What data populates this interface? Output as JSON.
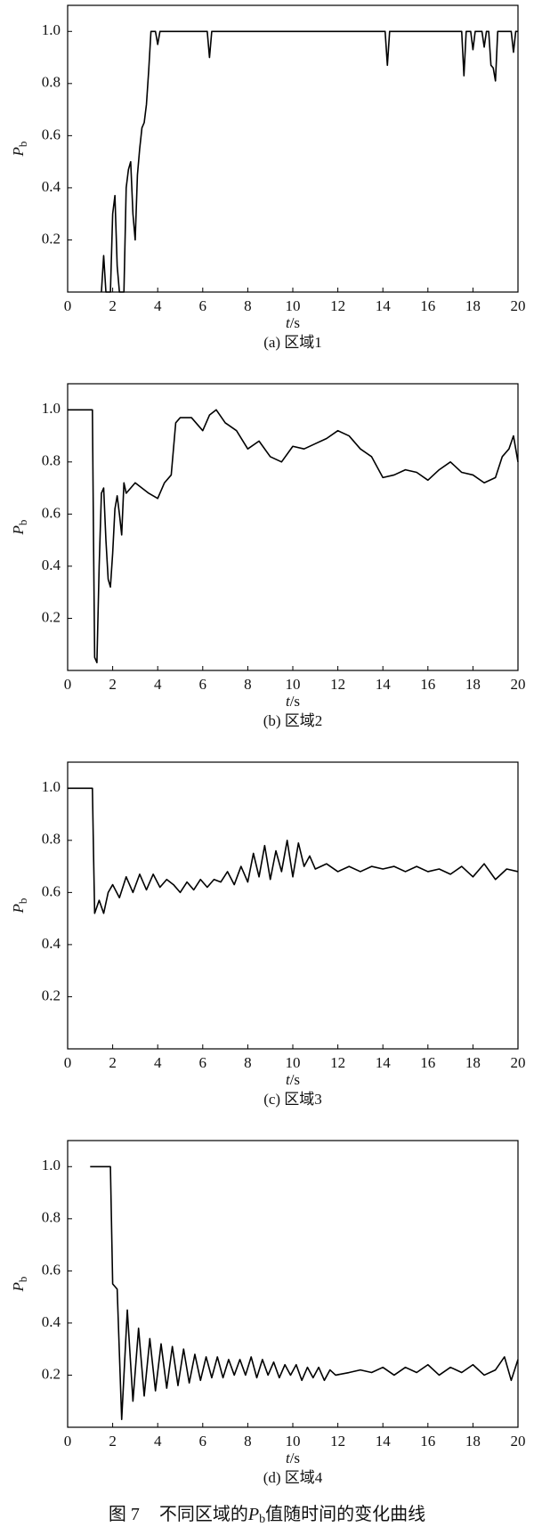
{
  "chart_data": [
    {
      "type": "line",
      "subtitle": "(a) 区域1",
      "x_label": [
        "t",
        "/s"
      ],
      "y_label": [
        "P",
        "b"
      ],
      "color": "#000000",
      "xlim": [
        0,
        20
      ],
      "xticks": [
        0,
        2,
        4,
        6,
        8,
        10,
        12,
        14,
        16,
        18,
        20
      ],
      "ylim": [
        0,
        1.1
      ],
      "yticks": [
        0.2,
        0.4,
        0.6,
        0.8,
        {
          "value": 1,
          "label": "1.0"
        }
      ],
      "x": [
        1.5,
        1.6,
        1.7,
        1.9,
        2.0,
        2.1,
        2.2,
        2.3,
        2.4,
        2.5,
        2.6,
        2.7,
        2.8,
        2.9,
        3.0,
        3.1,
        3.2,
        3.3,
        3.4,
        3.5,
        3.6,
        3.7,
        3.9,
        4.0,
        4.1,
        6.2,
        6.3,
        6.4,
        14.1,
        14.2,
        14.3,
        17.5,
        17.6,
        17.7,
        17.9,
        18.0,
        18.1,
        18.4,
        18.5,
        18.6,
        18.7,
        18.8,
        18.9,
        19.0,
        19.1,
        19.7,
        19.8,
        19.9,
        20
      ],
      "values": [
        0,
        0.14,
        0,
        0,
        0.3,
        0.37,
        0.1,
        0,
        0,
        0,
        0.4,
        0.47,
        0.5,
        0.3,
        0.2,
        0.45,
        0.55,
        0.63,
        0.65,
        0.72,
        0.85,
        1.0,
        1.0,
        0.95,
        1.0,
        1.0,
        0.9,
        1.0,
        1.0,
        0.87,
        1.0,
        1.0,
        0.83,
        1.0,
        1.0,
        0.93,
        1.0,
        1.0,
        0.94,
        1.0,
        1.0,
        0.87,
        0.86,
        0.81,
        1.0,
        1.0,
        0.92,
        1.0,
        1.0
      ]
    },
    {
      "type": "line",
      "subtitle": "(b) 区域2",
      "x_label": [
        "t",
        "/s"
      ],
      "y_label": [
        "P",
        "b"
      ],
      "color": "#000000",
      "xlim": [
        0,
        20
      ],
      "xticks": [
        0,
        2,
        4,
        6,
        8,
        10,
        12,
        14,
        16,
        18,
        20
      ],
      "ylim": [
        0,
        1.1
      ],
      "yticks": [
        0.2,
        0.4,
        0.6,
        0.8,
        {
          "value": 1,
          "label": "1.0"
        }
      ],
      "x": [
        0,
        1.1,
        1.15,
        1.2,
        1.3,
        1.4,
        1.5,
        1.6,
        1.7,
        1.8,
        1.9,
        2.0,
        2.1,
        2.2,
        2.3,
        2.4,
        2.5,
        2.6,
        2.8,
        3.0,
        3.3,
        3.6,
        4.0,
        4.3,
        4.6,
        4.8,
        5.0,
        5.5,
        6.0,
        6.3,
        6.6,
        7.0,
        7.5,
        8.0,
        8.5,
        9.0,
        9.5,
        10.0,
        10.5,
        11.0,
        11.5,
        12.0,
        12.5,
        13.0,
        13.5,
        14.0,
        14.5,
        15.0,
        15.5,
        16.0,
        16.5,
        17.0,
        17.5,
        18.0,
        18.5,
        19.0,
        19.3,
        19.6,
        19.8,
        20
      ],
      "values": [
        1,
        1,
        0.5,
        0.05,
        0.03,
        0.4,
        0.68,
        0.7,
        0.5,
        0.35,
        0.32,
        0.45,
        0.62,
        0.67,
        0.6,
        0.52,
        0.72,
        0.68,
        0.7,
        0.72,
        0.7,
        0.68,
        0.66,
        0.72,
        0.75,
        0.95,
        0.97,
        0.97,
        0.92,
        0.98,
        1.0,
        0.95,
        0.92,
        0.85,
        0.88,
        0.82,
        0.8,
        0.86,
        0.85,
        0.87,
        0.89,
        0.92,
        0.9,
        0.85,
        0.82,
        0.74,
        0.75,
        0.77,
        0.76,
        0.73,
        0.77,
        0.8,
        0.76,
        0.75,
        0.72,
        0.74,
        0.82,
        0.85,
        0.9,
        0.8
      ]
    },
    {
      "type": "line",
      "subtitle": "(c) 区域3",
      "x_label": [
        "t",
        "/s"
      ],
      "y_label": [
        "P",
        "b"
      ],
      "color": "#000000",
      "xlim": [
        0,
        20
      ],
      "xticks": [
        0,
        2,
        4,
        6,
        8,
        10,
        12,
        14,
        16,
        18,
        20
      ],
      "ylim": [
        0,
        1.1
      ],
      "yticks": [
        0.2,
        0.4,
        0.6,
        0.8,
        {
          "value": 1,
          "label": "1.0"
        }
      ],
      "x": [
        0,
        1.1,
        1.15,
        1.2,
        1.4,
        1.6,
        1.8,
        2.0,
        2.3,
        2.6,
        2.9,
        3.2,
        3.5,
        3.8,
        4.1,
        4.4,
        4.7,
        5.0,
        5.3,
        5.6,
        5.9,
        6.2,
        6.5,
        6.8,
        7.1,
        7.4,
        7.7,
        8.0,
        8.25,
        8.5,
        8.75,
        9.0,
        9.25,
        9.5,
        9.75,
        10.0,
        10.25,
        10.5,
        10.75,
        11.0,
        11.5,
        12.0,
        12.5,
        13.0,
        13.5,
        14.0,
        14.5,
        15.0,
        15.5,
        16.0,
        16.5,
        17.0,
        17.5,
        18.0,
        18.5,
        19.0,
        19.5,
        20
      ],
      "values": [
        1,
        1,
        0.75,
        0.52,
        0.57,
        0.52,
        0.6,
        0.63,
        0.58,
        0.66,
        0.6,
        0.67,
        0.61,
        0.67,
        0.62,
        0.65,
        0.63,
        0.6,
        0.64,
        0.61,
        0.65,
        0.62,
        0.65,
        0.64,
        0.68,
        0.63,
        0.7,
        0.64,
        0.75,
        0.66,
        0.78,
        0.65,
        0.76,
        0.68,
        0.8,
        0.66,
        0.79,
        0.7,
        0.74,
        0.69,
        0.71,
        0.68,
        0.7,
        0.68,
        0.7,
        0.69,
        0.7,
        0.68,
        0.7,
        0.68,
        0.69,
        0.67,
        0.7,
        0.66,
        0.71,
        0.65,
        0.69,
        0.68
      ]
    },
    {
      "type": "line",
      "subtitle": "(d) 区域4",
      "x_label": [
        "t",
        "/s"
      ],
      "y_label": [
        "P",
        "b"
      ],
      "color": "#000000",
      "xlim": [
        0,
        20
      ],
      "xticks": [
        0,
        2,
        4,
        6,
        8,
        10,
        12,
        14,
        16,
        18,
        20
      ],
      "ylim": [
        0,
        1.1
      ],
      "yticks": [
        0.2,
        0.4,
        0.6,
        0.8,
        {
          "value": 1,
          "label": "1.0"
        }
      ],
      "x": [
        1,
        1.9,
        2.0,
        2.2,
        2.4,
        2.65,
        2.9,
        3.15,
        3.4,
        3.65,
        3.9,
        4.15,
        4.4,
        4.65,
        4.9,
        5.15,
        5.4,
        5.65,
        5.9,
        6.15,
        6.4,
        6.65,
        6.9,
        7.15,
        7.4,
        7.65,
        7.9,
        8.15,
        8.4,
        8.65,
        8.9,
        9.15,
        9.4,
        9.65,
        9.9,
        10.15,
        10.4,
        10.65,
        10.9,
        11.15,
        11.4,
        11.65,
        11.9,
        12.5,
        13,
        13.5,
        14,
        14.5,
        15,
        15.5,
        16,
        16.5,
        17,
        17.5,
        18,
        18.5,
        19,
        19.4,
        19.7,
        20
      ],
      "values": [
        1,
        1,
        0.55,
        0.53,
        0.03,
        0.45,
        0.1,
        0.38,
        0.12,
        0.34,
        0.14,
        0.32,
        0.15,
        0.31,
        0.16,
        0.3,
        0.17,
        0.28,
        0.18,
        0.27,
        0.19,
        0.27,
        0.19,
        0.26,
        0.2,
        0.26,
        0.2,
        0.27,
        0.19,
        0.26,
        0.2,
        0.25,
        0.19,
        0.24,
        0.2,
        0.24,
        0.18,
        0.23,
        0.19,
        0.23,
        0.18,
        0.22,
        0.2,
        0.21,
        0.22,
        0.21,
        0.23,
        0.2,
        0.23,
        0.21,
        0.24,
        0.2,
        0.23,
        0.21,
        0.24,
        0.2,
        0.22,
        0.27,
        0.18,
        0.26
      ]
    }
  ],
  "caption": [
    "图 7",
    "不同区域的",
    "P",
    "b",
    "值随时间的变化曲线"
  ]
}
